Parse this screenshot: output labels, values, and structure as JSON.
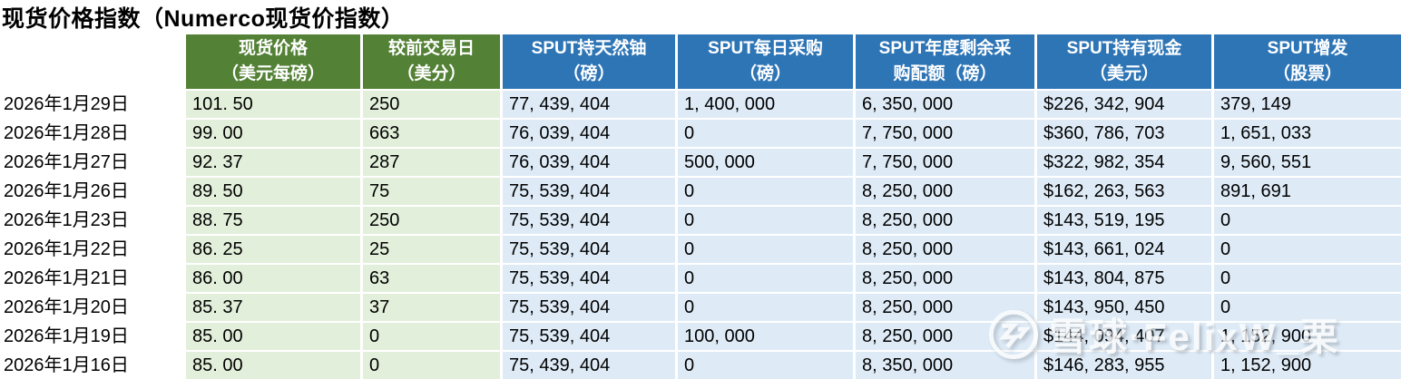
{
  "page": {
    "title": "现货价格指数（Numerco现货价指数）"
  },
  "colors": {
    "green_header": "#538135",
    "green_cell": "#E2EFDA",
    "blue_header": "#2E75B6",
    "blue_cell": "#DEEBF7",
    "header_text": "#FFFFFF",
    "cell_text": "#000000"
  },
  "table": {
    "columns": [
      {
        "key": "spot_price",
        "group": "green",
        "header_lines": [
          "现货价格",
          "（美元每磅）"
        ]
      },
      {
        "key": "change_vs_prev_day",
        "group": "green",
        "header_lines": [
          "较前交易日",
          "（美分）"
        ]
      },
      {
        "key": "sput_uranium_lbs",
        "group": "blue",
        "header_lines": [
          "SPUT持天然铀",
          "（磅）"
        ]
      },
      {
        "key": "sput_daily_purchase_lbs",
        "group": "blue",
        "header_lines": [
          "SPUT每日采购",
          "（磅）"
        ]
      },
      {
        "key": "sput_annual_remaining_quota_lbs",
        "group": "blue",
        "header_lines": [
          "SPUT年度剩余采",
          "购配额（磅）"
        ]
      },
      {
        "key": "sput_cash_usd",
        "group": "blue",
        "header_lines": [
          "SPUT持有现金",
          "（美元）"
        ]
      },
      {
        "key": "sput_share_issuance",
        "group": "blue",
        "header_lines": [
          "SPUT增发",
          "（股票）"
        ]
      }
    ],
    "rows": [
      {
        "date": "2026年1月29日",
        "spot_price": "101.50",
        "change_vs_prev_day": "250",
        "sput_uranium_lbs": "77,439,404",
        "sput_daily_purchase_lbs": "1,400,000",
        "sput_annual_remaining_quota_lbs": "6,350,000",
        "sput_cash_usd": "$226,342,904",
        "sput_share_issuance": "379,149"
      },
      {
        "date": "2026年1月28日",
        "spot_price": "99.00",
        "change_vs_prev_day": "663",
        "sput_uranium_lbs": "76,039,404",
        "sput_daily_purchase_lbs": "0",
        "sput_annual_remaining_quota_lbs": "7,750,000",
        "sput_cash_usd": "$360,786,703",
        "sput_share_issuance": "1,651,033"
      },
      {
        "date": "2026年1月27日",
        "spot_price": "92.37",
        "change_vs_prev_day": "287",
        "sput_uranium_lbs": "76,039,404",
        "sput_daily_purchase_lbs": "500,000",
        "sput_annual_remaining_quota_lbs": "7,750,000",
        "sput_cash_usd": "$322,982,354",
        "sput_share_issuance": "9,560,551"
      },
      {
        "date": "2026年1月26日",
        "spot_price": "89.50",
        "change_vs_prev_day": "75",
        "sput_uranium_lbs": "75,539,404",
        "sput_daily_purchase_lbs": "0",
        "sput_annual_remaining_quota_lbs": "8,250,000",
        "sput_cash_usd": "$162,263,563",
        "sput_share_issuance": "891,691"
      },
      {
        "date": "2026年1月23日",
        "spot_price": "88.75",
        "change_vs_prev_day": "250",
        "sput_uranium_lbs": "75,539,404",
        "sput_daily_purchase_lbs": "0",
        "sput_annual_remaining_quota_lbs": "8,250,000",
        "sput_cash_usd": "$143,519,195",
        "sput_share_issuance": "0"
      },
      {
        "date": "2026年1月22日",
        "spot_price": "86.25",
        "change_vs_prev_day": "25",
        "sput_uranium_lbs": "75,539,404",
        "sput_daily_purchase_lbs": "0",
        "sput_annual_remaining_quota_lbs": "8,250,000",
        "sput_cash_usd": "$143,661,024",
        "sput_share_issuance": "0"
      },
      {
        "date": "2026年1月21日",
        "spot_price": "86.00",
        "change_vs_prev_day": "63",
        "sput_uranium_lbs": "75,539,404",
        "sput_daily_purchase_lbs": "0",
        "sput_annual_remaining_quota_lbs": "8,250,000",
        "sput_cash_usd": "$143,804,875",
        "sput_share_issuance": "0"
      },
      {
        "date": "2026年1月20日",
        "spot_price": "85.37",
        "change_vs_prev_day": "37",
        "sput_uranium_lbs": "75,539,404",
        "sput_daily_purchase_lbs": "0",
        "sput_annual_remaining_quota_lbs": "8,250,000",
        "sput_cash_usd": "$143,950,450",
        "sput_share_issuance": "0"
      },
      {
        "date": "2026年1月19日",
        "spot_price": "85.00",
        "change_vs_prev_day": "0",
        "sput_uranium_lbs": "75,539,404",
        "sput_daily_purchase_lbs": "100,000",
        "sput_annual_remaining_quota_lbs": "8,250,000",
        "sput_cash_usd": "$144,094,407",
        "sput_share_issuance": "1,152,900"
      },
      {
        "date": "2026年1月16日",
        "spot_price": "85.00",
        "change_vs_prev_day": "0",
        "sput_uranium_lbs": "75,439,404",
        "sput_daily_purchase_lbs": "0",
        "sput_annual_remaining_quota_lbs": "8,350,000",
        "sput_cash_usd": "$146,283,955",
        "sput_share_issuance": "1,152,900"
      }
    ]
  },
  "watermark": {
    "text": "雪球·FelixW_栗",
    "logo": "xueqiu-snowball-logo"
  }
}
